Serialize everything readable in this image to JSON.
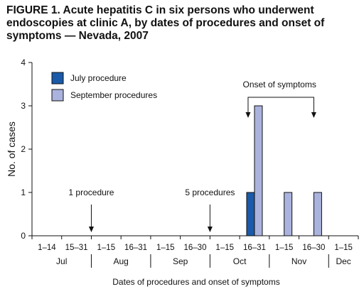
{
  "chart_data": {
    "type": "bar",
    "title": "FIGURE 1. Acute hepatitis C in six persons who underwent endoscopies at clinic A, by dates of procedures and onset of symptoms — Nevada, 2007",
    "xlabel": "Dates of procedures and onset of symptoms",
    "ylabel": "No. of cases",
    "ylim": [
      0,
      4
    ],
    "yticks": [
      0,
      1,
      2,
      3,
      4
    ],
    "grid": false,
    "legend_position": "top-left",
    "categories": [
      "1–14",
      "15–31",
      "1–15",
      "16–31",
      "1–15",
      "16–30",
      "1–15",
      "16–31",
      "1–15",
      "16–30",
      "1–15"
    ],
    "months": [
      {
        "label": "Jul",
        "span": 2
      },
      {
        "label": "Aug",
        "span": 2
      },
      {
        "label": "Sep",
        "span": 2
      },
      {
        "label": "Oct",
        "span": 2
      },
      {
        "label": "Nov",
        "span": 2
      },
      {
        "label": "Dec",
        "span": 1
      }
    ],
    "series": [
      {
        "name": "July procedure",
        "color": "#1a5aa8",
        "values": [
          0,
          0,
          0,
          0,
          0,
          0,
          0,
          1,
          0,
          0,
          0
        ]
      },
      {
        "name": "September procedures",
        "color": "#aab3dd",
        "values": [
          0,
          0,
          0,
          0,
          0,
          0,
          0,
          3,
          1,
          1,
          0
        ]
      }
    ],
    "annotations": [
      {
        "text": "1 procedure",
        "category_index": 1
      },
      {
        "text": "5 procedures",
        "category_index": 5
      },
      {
        "text": "Onset of symptoms",
        "category_indices": [
          7,
          9
        ]
      }
    ]
  }
}
